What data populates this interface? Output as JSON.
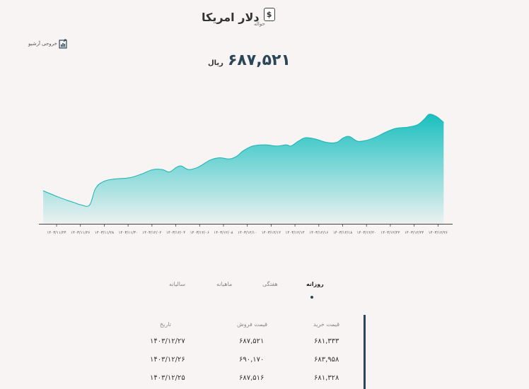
{
  "header": {
    "title": "دلار امریکا",
    "subtitle": "حواله",
    "currency_icon": "dollar-sign-icon"
  },
  "export": {
    "label": "خروجی آرشیو",
    "icon": "file-chart-icon"
  },
  "price": {
    "value": "۶۸۷,۵۲۱",
    "unit": "ریال"
  },
  "tabs": [
    {
      "label": "روزانه",
      "active": true
    },
    {
      "label": "هفتگی",
      "active": false
    },
    {
      "label": "ماهیانه",
      "active": false
    },
    {
      "label": "سالیانه",
      "active": false
    }
  ],
  "table": {
    "headers": {
      "buy": "قیمت خرید",
      "sell": "قیمت فروش",
      "date": "تاریخ"
    },
    "rows": [
      {
        "buy": "۶۸۱,۳۳۳",
        "sell": "۶۸۷,۵۲۱",
        "date": "۱۴۰۳/۱۲/۲۷"
      },
      {
        "buy": "۶۸۳,۹۵۸",
        "sell": "۶۹۰,۱۷۰",
        "date": "۱۴۰۳/۱۲/۲۶"
      },
      {
        "buy": "۶۸۱,۳۲۸",
        "sell": "۶۸۷,۵۱۶",
        "date": "۱۴۰۳/۱۲/۲۵"
      }
    ]
  },
  "chart_data": {
    "type": "area",
    "title": "",
    "xlabel": "",
    "ylabel": "",
    "grid": false,
    "color": "#1abfbf",
    "x": [
      "۱۴۰۳/۱۱/۲۴",
      "۱۴۰۳/۱۱/۲۶",
      "۱۴۰۳/۱۱/۲۸",
      "۱۴۰۳/۱۱/۳۰",
      "۱۴۰۳/۱۲/۰۲",
      "۱۴۰۳/۱۲/۰۴",
      "۱۴۰۳/۱۲/۰۶",
      "۱۴۰۳/۱۲/۰۸",
      "۱۴۰۳/۱۲/۱۰",
      "۱۴۰۳/۱۲/۱۲",
      "۱۴۰۳/۱۲/۱۴",
      "۱۴۰۳/۱۲/۱۶",
      "۱۴۰۳/۱۲/۱۸",
      "۱۴۰۳/۱۲/۲۰",
      "۱۴۰۳/۱۲/۲۲",
      "۱۴۰۳/۱۲/۲۴",
      "۱۴۰۳/۱۲/۲۶"
    ],
    "series": [
      {
        "values": [
          [
            0,
            0.28
          ],
          [
            0.6,
            0.23
          ],
          [
            1.0,
            0.2
          ],
          [
            1.3,
            0.18
          ],
          [
            1.6,
            0.16
          ],
          [
            1.95,
            0.16
          ],
          [
            2.2,
            0.3
          ],
          [
            2.55,
            0.36
          ],
          [
            3.0,
            0.38
          ],
          [
            3.6,
            0.39
          ],
          [
            4.1,
            0.42
          ],
          [
            4.6,
            0.46
          ],
          [
            5.0,
            0.46
          ],
          [
            5.3,
            0.44
          ],
          [
            5.6,
            0.48
          ],
          [
            5.8,
            0.49
          ],
          [
            6.1,
            0.46
          ],
          [
            6.5,
            0.48
          ],
          [
            7.0,
            0.54
          ],
          [
            7.4,
            0.56
          ],
          [
            7.8,
            0.55
          ],
          [
            8.1,
            0.57
          ],
          [
            8.4,
            0.62
          ],
          [
            8.8,
            0.66
          ],
          [
            9.3,
            0.67
          ],
          [
            9.8,
            0.66
          ],
          [
            10.2,
            0.67
          ],
          [
            10.4,
            0.66
          ],
          [
            10.7,
            0.7
          ],
          [
            11.0,
            0.73
          ],
          [
            11.4,
            0.72
          ],
          [
            11.9,
            0.69
          ],
          [
            12.3,
            0.69
          ],
          [
            12.6,
            0.73
          ],
          [
            12.85,
            0.74
          ],
          [
            13.2,
            0.7
          ],
          [
            13.6,
            0.71
          ],
          [
            14.0,
            0.74
          ],
          [
            14.4,
            0.78
          ],
          [
            14.8,
            0.81
          ],
          [
            15.3,
            0.82
          ],
          [
            15.7,
            0.84
          ],
          [
            16.0,
            0.89
          ],
          [
            16.2,
            0.93
          ],
          [
            16.5,
            0.91
          ],
          [
            16.8,
            0.86
          ]
        ]
      }
    ]
  }
}
